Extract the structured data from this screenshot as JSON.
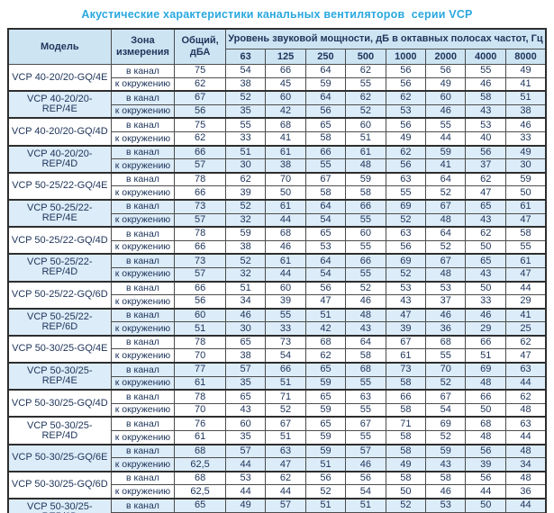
{
  "title": "Акустические характеристики канальных вентиляторов  серии VCP",
  "table": {
    "col_model": "Модель",
    "col_zone": "Зона измерения",
    "col_total": "Общий, дБА",
    "freq_header": "Уровень звуковой мощности, дБ в октавных полосах частот, Гц",
    "frequencies": [
      "63",
      "125",
      "250",
      "500",
      "1000",
      "2000",
      "4000",
      "8000"
    ],
    "groups": [
      {
        "model": "VCP 40-20/20-GQ/4E",
        "shaded": false,
        "rows": [
          {
            "zone": "в канал",
            "total": "75",
            "levels": [
              "54",
              "66",
              "64",
              "62",
              "56",
              "56",
              "55",
              "49"
            ]
          },
          {
            "zone": "к окружению",
            "total": "62",
            "levels": [
              "38",
              "45",
              "59",
              "55",
              "56",
              "49",
              "46",
              "41"
            ]
          }
        ]
      },
      {
        "model": "VCP 40-20/20-REP/4E",
        "shaded": true,
        "rows": [
          {
            "zone": "в канал",
            "total": "67",
            "levels": [
              "52",
              "60",
              "64",
              "62",
              "62",
              "60",
              "58",
              "51"
            ]
          },
          {
            "zone": "к окружению",
            "total": "56",
            "levels": [
              "35",
              "42",
              "56",
              "52",
              "53",
              "46",
              "43",
              "38"
            ]
          }
        ]
      },
      {
        "model": "VCP 40-20/20-GQ/4D",
        "shaded": false,
        "rows": [
          {
            "zone": "в канал",
            "total": "75",
            "levels": [
              "55",
              "68",
              "65",
              "60",
              "56",
              "55",
              "53",
              "46"
            ]
          },
          {
            "zone": "к окружению",
            "total": "62",
            "levels": [
              "33",
              "41",
              "58",
              "51",
              "49",
              "44",
              "40",
              "33"
            ]
          }
        ]
      },
      {
        "model": "VCP 40-20/20-REP/4D",
        "shaded": true,
        "rows": [
          {
            "zone": "в канал",
            "total": "66",
            "levels": [
              "51",
              "61",
              "66",
              "61",
              "62",
              "59",
              "56",
              "49"
            ]
          },
          {
            "zone": "к окружению",
            "total": "57",
            "levels": [
              "30",
              "38",
              "55",
              "48",
              "56",
              "41",
              "37",
              "30"
            ]
          }
        ]
      },
      {
        "model": "VCP 50-25/22-GQ/4E",
        "shaded": false,
        "rows": [
          {
            "zone": "в канал",
            "total": "78",
            "levels": [
              "62",
              "70",
              "67",
              "59",
              "63",
              "64",
              "62",
              "59"
            ]
          },
          {
            "zone": "к окружению",
            "total": "66",
            "levels": [
              "39",
              "50",
              "58",
              "58",
              "55",
              "52",
              "47",
              "50"
            ]
          }
        ]
      },
      {
        "model": "VCP 50-25/22-REP/4E",
        "shaded": true,
        "rows": [
          {
            "zone": "в канал",
            "total": "73",
            "levels": [
              "52",
              "61",
              "64",
              "66",
              "69",
              "67",
              "65",
              "61"
            ]
          },
          {
            "zone": "к окружению",
            "total": "57",
            "levels": [
              "32",
              "44",
              "54",
              "55",
              "52",
              "48",
              "43",
              "47"
            ]
          }
        ]
      },
      {
        "model": "VCP 50-25/22-GQ/4D",
        "shaded": false,
        "rows": [
          {
            "zone": "в канал",
            "total": "78",
            "levels": [
              "59",
              "68",
              "65",
              "60",
              "63",
              "64",
              "62",
              "58"
            ]
          },
          {
            "zone": "к окружению",
            "total": "66",
            "levels": [
              "38",
              "46",
              "53",
              "55",
              "56",
              "52",
              "50",
              "55"
            ]
          }
        ]
      },
      {
        "model": "VCP 50-25/22-REP/4D",
        "shaded": true,
        "rows": [
          {
            "zone": "в канал",
            "total": "73",
            "levels": [
              "52",
              "61",
              "64",
              "66",
              "69",
              "67",
              "65",
              "61"
            ]
          },
          {
            "zone": "к окружению",
            "total": "57",
            "levels": [
              "32",
              "44",
              "54",
              "55",
              "52",
              "48",
              "43",
              "47"
            ]
          }
        ]
      },
      {
        "model": "VCP 50-25/22-GQ/6D",
        "shaded": false,
        "rows": [
          {
            "zone": "в канал",
            "total": "66",
            "levels": [
              "51",
              "60",
              "56",
              "52",
              "53",
              "53",
              "50",
              "44"
            ]
          },
          {
            "zone": "к окружению",
            "total": "56",
            "levels": [
              "34",
              "39",
              "47",
              "46",
              "43",
              "37",
              "33",
              "29"
            ]
          }
        ]
      },
      {
        "model": "VCP 50-25/22-REP/6D",
        "shaded": true,
        "rows": [
          {
            "zone": "в канал",
            "total": "60",
            "levels": [
              "46",
              "55",
              "51",
              "48",
              "47",
              "46",
              "46",
              "41"
            ]
          },
          {
            "zone": "к окружению",
            "total": "51",
            "levels": [
              "30",
              "33",
              "42",
              "43",
              "39",
              "36",
              "29",
              "25"
            ]
          }
        ]
      },
      {
        "model": "VCP 50-30/25-GQ/4E",
        "shaded": false,
        "rows": [
          {
            "zone": "в канал",
            "total": "78",
            "levels": [
              "65",
              "73",
              "68",
              "64",
              "67",
              "68",
              "66",
              "62"
            ]
          },
          {
            "zone": "к окружению",
            "total": "70",
            "levels": [
              "38",
              "54",
              "62",
              "58",
              "61",
              "55",
              "51",
              "47"
            ]
          }
        ]
      },
      {
        "model": "VCP 50-30/25-REP/4E",
        "shaded": true,
        "rows": [
          {
            "zone": "в канал",
            "total": "77",
            "levels": [
              "57",
              "66",
              "65",
              "68",
              "73",
              "70",
              "69",
              "63"
            ]
          },
          {
            "zone": "к окружению",
            "total": "61",
            "levels": [
              "35",
              "51",
              "59",
              "55",
              "58",
              "52",
              "48",
              "44"
            ]
          }
        ]
      },
      {
        "model": "VCP 50-30/25-GQ/4D",
        "shaded": false,
        "rows": [
          {
            "zone": "в канал",
            "total": "78",
            "levels": [
              "65",
              "71",
              "65",
              "63",
              "66",
              "67",
              "66",
              "62"
            ]
          },
          {
            "zone": "к окружению",
            "total": "70",
            "levels": [
              "43",
              "52",
              "59",
              "55",
              "58",
              "54",
              "50",
              "48"
            ]
          }
        ]
      },
      {
        "model": "VCP 50-30/25-REP/4D",
        "shaded": false,
        "rows": [
          {
            "zone": "в канал",
            "total": "76",
            "levels": [
              "60",
              "67",
              "65",
              "67",
              "71",
              "69",
              "68",
              "63"
            ]
          },
          {
            "zone": "к окружению",
            "total": "61",
            "levels": [
              "35",
              "51",
              "59",
              "55",
              "58",
              "52",
              "48",
              "44"
            ]
          }
        ]
      },
      {
        "model": "VCP 50-30/25-GQ/6E",
        "shaded": true,
        "rows": [
          {
            "zone": "в канал",
            "total": "68",
            "levels": [
              "57",
              "63",
              "59",
              "57",
              "58",
              "59",
              "56",
              "48"
            ]
          },
          {
            "zone": "к окружению",
            "total": "62,5",
            "levels": [
              "44",
              "47",
              "51",
              "46",
              "49",
              "43",
              "39",
              "34"
            ]
          }
        ]
      },
      {
        "model": "VCP 50-30/25-GQ/6D",
        "shaded": false,
        "rows": [
          {
            "zone": "в канал",
            "total": "68",
            "levels": [
              "53",
              "62",
              "56",
              "56",
              "58",
              "58",
              "56",
              "48"
            ]
          },
          {
            "zone": "к окружению",
            "total": "62,5",
            "levels": [
              "44",
              "44",
              "52",
              "54",
              "50",
              "46",
              "44",
              "36"
            ]
          }
        ]
      },
      {
        "model": "VCP 50-30/25-REP/6D",
        "shaded": true,
        "rows": [
          {
            "zone": "в канал",
            "total": "65",
            "levels": [
              "49",
              "57",
              "51",
              "51",
              "52",
              "53",
              "50",
              "44"
            ]
          },
          {
            "zone": "к окружению",
            "total": "58",
            "levels": [
              "39",
              "36",
              "46",
              "47",
              "48",
              "40",
              "39",
              "31"
            ]
          }
        ]
      }
    ]
  }
}
